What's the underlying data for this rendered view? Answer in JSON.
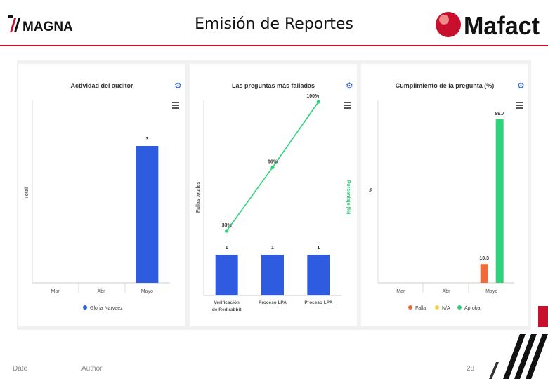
{
  "header": {
    "title": "Emisión de Reportes",
    "left_logo": "MAGNA",
    "right_logo": "Mafact"
  },
  "footer": {
    "date": "Date",
    "author": "Author",
    "page": "28"
  },
  "colors": {
    "accent": "#c8102e",
    "blue": "#2f5be0",
    "green": "#2ed47a",
    "orange": "#f26b3a",
    "yellow": "#f5d33c"
  },
  "panels": {
    "p1": {
      "title": "Actividad del auditor",
      "ylabel": "Total",
      "legend": [
        "Gloria Narvaez"
      ]
    },
    "p2": {
      "title": "Las preguntas más falladas",
      "ylabel_left": "Fallas totales",
      "ylabel_right": "Porcentaje (%)"
    },
    "p3": {
      "title": "Cumplimiento de la pregunta (%)",
      "ylabel": "%",
      "legend": [
        "Falla",
        "N/A",
        "Aprobar"
      ]
    }
  },
  "chart_data": [
    {
      "type": "bar",
      "title": "Actividad del auditor",
      "ylabel": "Total",
      "categories": [
        "Mar",
        "Abr",
        "Mayo"
      ],
      "series": [
        {
          "name": "Gloria Narvaez",
          "values": [
            0,
            0,
            3
          ]
        }
      ],
      "ylim": [
        0,
        4
      ],
      "legend": "bottom"
    },
    {
      "type": "bar",
      "title": "Las preguntas más falladas",
      "ylabel": "Fallas totales",
      "categories": [
        "Verificación de Red rabbit",
        "Proceso LPA",
        "Proceso LPA"
      ],
      "values": [
        1,
        1,
        1
      ],
      "line_series": {
        "ylabel": "Porcentaje (%)",
        "values": [
          33,
          66,
          100
        ],
        "labels": [
          "33%",
          "66%",
          "100%"
        ]
      }
    },
    {
      "type": "bar",
      "title": "Cumplimiento de la pregunta (%)",
      "ylabel": "%",
      "categories": [
        "Mar",
        "Abr",
        "Mayo"
      ],
      "series": [
        {
          "name": "Falla",
          "values": [
            0,
            0,
            10.3
          ]
        },
        {
          "name": "N/A",
          "values": [
            0,
            0,
            0
          ]
        },
        {
          "name": "Aprobar",
          "values": [
            0,
            0,
            89.7
          ]
        }
      ],
      "ylim": [
        0,
        100
      ],
      "legend": "bottom"
    }
  ]
}
